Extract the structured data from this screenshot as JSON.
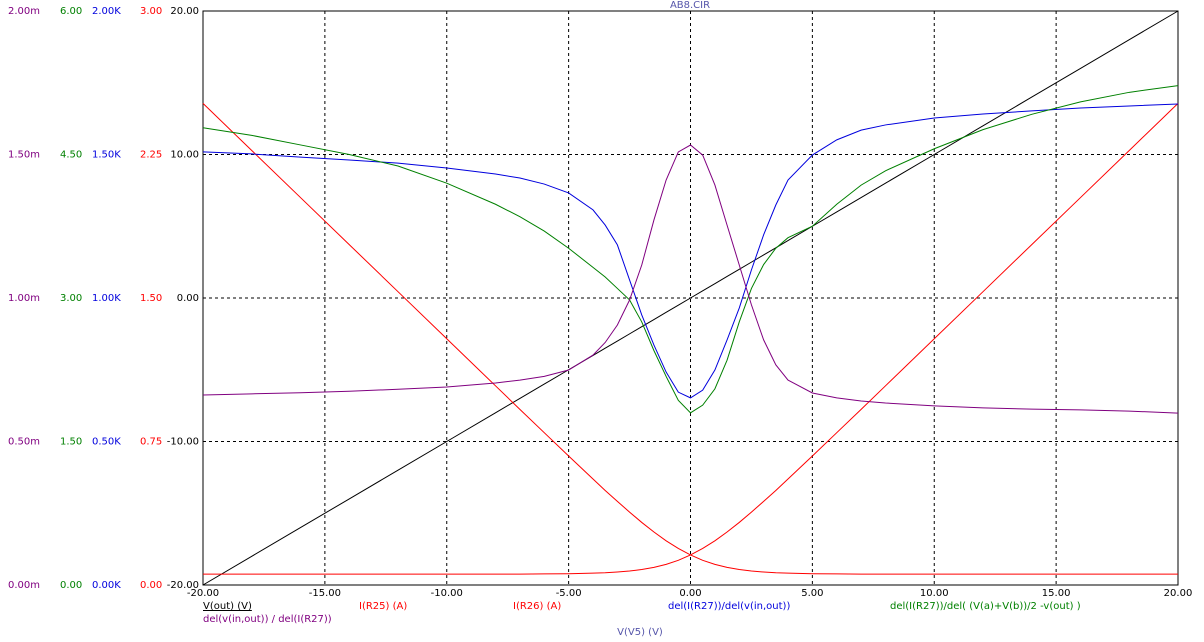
{
  "chart_data": {
    "type": "line",
    "title": "AB8.CIR",
    "x_label": "V(V5) (V)",
    "x": [
      -20,
      -18,
      -16,
      -14,
      -12,
      -10,
      -8,
      -7,
      -6,
      -5,
      -4,
      -3.5,
      -3,
      -2.5,
      -2,
      -1.5,
      -1,
      -0.5,
      0,
      0.5,
      1,
      1.5,
      2,
      2.5,
      3,
      3.5,
      4,
      5,
      6,
      7,
      8,
      10,
      12,
      14,
      16,
      18,
      20
    ],
    "xlim": [
      -20,
      20
    ],
    "xticks": [
      {
        "value": -20,
        "label": "-20.00"
      },
      {
        "value": -15,
        "label": "-15.00"
      },
      {
        "value": -10,
        "label": "-10.00"
      },
      {
        "value": -5,
        "label": "-5.00"
      },
      {
        "value": 0,
        "label": "0.00"
      },
      {
        "value": 5,
        "label": "5.00"
      },
      {
        "value": 10,
        "label": "10.00"
      },
      {
        "value": 15,
        "label": "15.00"
      },
      {
        "value": 20,
        "label": "20.00"
      }
    ],
    "ylim": [
      -20,
      20
    ],
    "yticks": [
      {
        "value": -20,
        "label": "-20.00"
      },
      {
        "value": -10,
        "label": "-10.00"
      },
      {
        "value": 0,
        "label": "0.00"
      },
      {
        "value": 10,
        "label": "10.00"
      },
      {
        "value": 20,
        "label": "20.00"
      }
    ],
    "y2lim": [
      0,
      3
    ],
    "y2ticks": [
      {
        "value": 0,
        "label": "0.00"
      },
      {
        "value": 0.75,
        "label": "0.75"
      },
      {
        "value": 1.5,
        "label": "1.50"
      },
      {
        "value": 2.25,
        "label": "2.25"
      },
      {
        "value": 3,
        "label": "3.00"
      }
    ],
    "y3lim": [
      0,
      2000
    ],
    "y3ticks": [
      {
        "value": 0,
        "label": "0.00K"
      },
      {
        "value": 500,
        "label": "0.50K"
      },
      {
        "value": 1000,
        "label": "1.00K"
      },
      {
        "value": 1500,
        "label": "1.50K"
      },
      {
        "value": 2000,
        "label": "2.00K"
      }
    ],
    "y4lim": [
      0,
      6
    ],
    "y4ticks": [
      {
        "value": 0,
        "label": "0.00"
      },
      {
        "value": 1.5,
        "label": "1.50"
      },
      {
        "value": 3,
        "label": "3.00"
      },
      {
        "value": 4.5,
        "label": "4.50"
      },
      {
        "value": 6,
        "label": "6.00"
      }
    ],
    "y5lim": [
      0,
      0.002
    ],
    "y5ticks": [
      {
        "value": 0,
        "label": "0.00m"
      },
      {
        "value": 0.0005,
        "label": "0.50m"
      },
      {
        "value": 0.001,
        "label": "1.00m"
      },
      {
        "value": 0.0015,
        "label": "1.50m"
      },
      {
        "value": 0.002,
        "label": "2.00m"
      }
    ],
    "grid": true,
    "series": [
      {
        "name": "V(out) (V)",
        "color": "#000000",
        "values": [
          -20,
          -18,
          -16,
          -14,
          -12,
          -10,
          -8,
          -7,
          -6,
          -5,
          -4,
          -3.5,
          -3,
          -2.5,
          -2,
          -1.5,
          -1,
          -0.5,
          0,
          0.5,
          1,
          1.5,
          2,
          2.5,
          3,
          3.5,
          4,
          5,
          6,
          7,
          8,
          10,
          12,
          14,
          16,
          18,
          20
        ]
      },
      {
        "name": "I(R25) (A)",
        "color": "#ff0000",
        "axis": "y2",
        "values": [
          2.517,
          2.271,
          2.025,
          1.779,
          1.533,
          1.287,
          1.041,
          0.918,
          0.796,
          0.674,
          0.554,
          0.494,
          0.437,
          0.381,
          0.327,
          0.277,
          0.231,
          0.191,
          0.157,
          0.129,
          0.108,
          0.092,
          0.081,
          0.073,
          0.068,
          0.064,
          0.062,
          0.059,
          0.058,
          0.057,
          0.057,
          0.057,
          0.057,
          0.057,
          0.057,
          0.057,
          0.057
        ]
      },
      {
        "name": "I(R26) (A)",
        "color": "#ff0000",
        "axis": "y2",
        "values": [
          0.057,
          0.057,
          0.057,
          0.057,
          0.057,
          0.057,
          0.057,
          0.057,
          0.058,
          0.059,
          0.062,
          0.064,
          0.068,
          0.073,
          0.081,
          0.092,
          0.108,
          0.129,
          0.157,
          0.191,
          0.231,
          0.277,
          0.327,
          0.381,
          0.437,
          0.494,
          0.554,
          0.674,
          0.796,
          0.918,
          1.041,
          1.287,
          1.533,
          1.779,
          2.025,
          2.271,
          2.517
        ]
      },
      {
        "name": "del(I(R27))/del(v(in,out))",
        "color": "#0000dd",
        "axis": "y3",
        "values": [
          1509,
          1502,
          1491,
          1481,
          1470,
          1453,
          1432,
          1418,
          1397,
          1366,
          1307,
          1254,
          1185,
          1063,
          941,
          836,
          742,
          672,
          652,
          679,
          749,
          854,
          965,
          1098,
          1220,
          1324,
          1411,
          1498,
          1551,
          1585,
          1603,
          1627,
          1641,
          1652,
          1662,
          1669,
          1676
        ]
      },
      {
        "name": "del(I(R27))/del( (V(a)+V(b))/2 -v(out) )",
        "color": "#008000",
        "axis": "y4",
        "values": [
          4.78,
          4.7,
          4.6,
          4.5,
          4.38,
          4.2,
          3.98,
          3.85,
          3.7,
          3.52,
          3.32,
          3.22,
          3.1,
          2.98,
          2.75,
          2.45,
          2.18,
          1.93,
          1.8,
          1.88,
          2.05,
          2.35,
          2.75,
          3.1,
          3.35,
          3.52,
          3.63,
          3.75,
          3.98,
          4.18,
          4.33,
          4.56,
          4.76,
          4.92,
          5.05,
          5.15,
          5.22
        ]
      },
      {
        "name": "del(v(in,out)) / del(I(R27))",
        "color": "#800080",
        "axis": "y5",
        "values": [
          0.000662,
          0.000666,
          0.00067,
          0.000675,
          0.000682,
          0.00069,
          0.000704,
          0.000714,
          0.000727,
          0.000749,
          0.000801,
          0.000845,
          0.000906,
          0.000993,
          0.001115,
          0.001272,
          0.001411,
          0.001509,
          0.001533,
          0.001498,
          0.001394,
          0.001254,
          0.001115,
          0.000976,
          0.000854,
          0.000767,
          0.000714,
          0.000669,
          0.000652,
          0.000641,
          0.000634,
          0.000624,
          0.000617,
          0.000613,
          0.00061,
          0.000606,
          0.000599
        ]
      }
    ]
  }
}
